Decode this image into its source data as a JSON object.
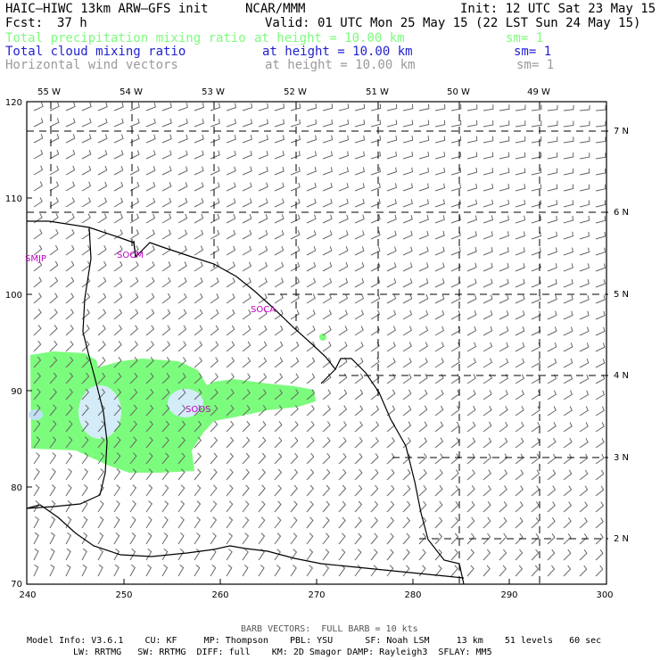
{
  "header": {
    "model": "HAIC–HIWC 13km ARW–GFS init",
    "org": "NCAR/MMM",
    "init": "Init: 12 UTC Sat 23 May 15",
    "fcst_label": "Fcst:",
    "fcst_value": "37 h",
    "valid": "Valid: 01 UTC Mon 25 May 15 (22 LST Sun 24 May 15)"
  },
  "fields": [
    {
      "name": "Total precipitation mixing ratio",
      "height": "at height = 10.00 km",
      "sm": "sm= 1",
      "color": "#7cfc7c"
    },
    {
      "name": "Total cloud mixing ratio",
      "height": "at height = 10.00 km",
      "sm": "sm= 1",
      "color": "#1f1fd0"
    },
    {
      "name": "Horizontal wind vectors",
      "height": "at height = 10.00 km",
      "sm": "sm= 1",
      "color": "#9a9a9a"
    }
  ],
  "map": {
    "top_lon_labels": [
      "55 W",
      "54 W",
      "53 W",
      "52 W",
      "51 W",
      "50 W",
      "49 W"
    ],
    "right_lat_labels": [
      "7 N",
      "6 N",
      "5 N",
      "4 N",
      "3 N",
      "2 N"
    ],
    "left_ticks": [
      "120",
      "110",
      "100",
      "90",
      "80",
      "70"
    ],
    "bottom_ticks": [
      "240",
      "250",
      "260",
      "270",
      "280",
      "290",
      "300"
    ],
    "stations": [
      "SMJP",
      "SOCM",
      "SOCA",
      "SOOS"
    ],
    "colors": {
      "precip": "#7cfc7c",
      "cloud": "#d4ecf8",
      "cloud_dense": "#c0e0f4",
      "wind": "#666666",
      "station": "#c000c0"
    }
  },
  "footer": {
    "barb_note": "BARB VECTORS:  FULL BARB = 10 kts",
    "line1": "Model Info: V3.6.1    CU: KF     MP: Thompson    PBL: YSU      SF: Noah LSM     13 km    51 levels   60 sec",
    "line2": "LW: RRTMG   SW: RRTMG  DIFF: full    KM: 2D Smagor DAMP: Rayleigh3  SFLAY: MM5"
  }
}
